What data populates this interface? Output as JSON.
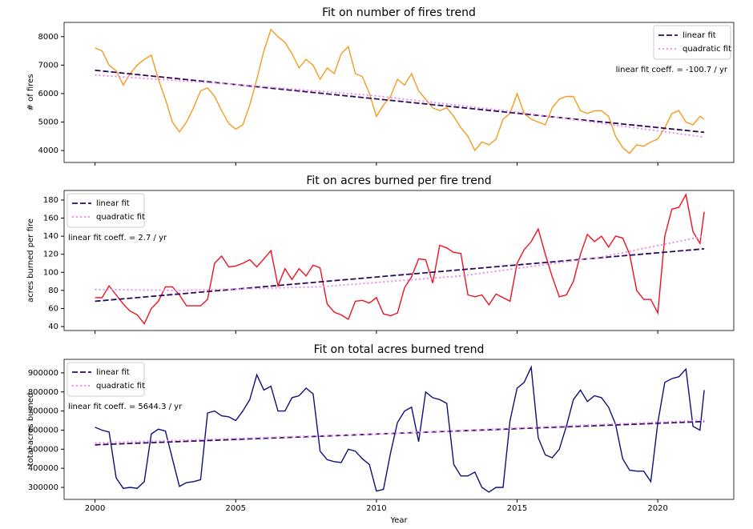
{
  "chart_data": [
    {
      "type": "line",
      "title": "Fit on number of fires trend",
      "ylabel": "# of fires",
      "annotation": "linear fit coeff. = -100.7 / yr",
      "legend": "upper right",
      "xlim": [
        1998.9,
        2022.7
      ],
      "xticks": [
        2000,
        2005,
        2010,
        2015,
        2020
      ],
      "ylim": [
        3580,
        8500
      ],
      "yticks": [
        4000,
        5000,
        6000,
        7000,
        8000
      ],
      "series": [
        {
          "color": "#f39c1f",
          "linestyle": "solid",
          "x": [
            2000,
            2000.25,
            2000.5,
            2000.75,
            2001,
            2001.25,
            2001.5,
            2001.75,
            2002,
            2002.25,
            2002.5,
            2002.75,
            2003,
            2003.25,
            2003.5,
            2003.75,
            2004,
            2004.25,
            2004.5,
            2004.75,
            2005,
            2005.25,
            2005.5,
            2005.75,
            2006,
            2006.25,
            2006.5,
            2006.75,
            2007,
            2007.25,
            2007.5,
            2007.75,
            2008,
            2008.25,
            2008.5,
            2008.75,
            2009,
            2009.25,
            2009.5,
            2009.75,
            2010,
            2010.25,
            2010.5,
            2010.75,
            2011,
            2011.25,
            2011.5,
            2011.75,
            2012,
            2012.25,
            2012.5,
            2012.75,
            2013,
            2013.25,
            2013.5,
            2013.75,
            2014,
            2014.25,
            2014.5,
            2014.75,
            2015,
            2015.25,
            2015.5,
            2015.75,
            2016,
            2016.25,
            2016.5,
            2016.75,
            2017,
            2017.25,
            2017.5,
            2017.75,
            2018,
            2018.25,
            2018.5,
            2018.75,
            2019,
            2019.25,
            2019.5,
            2019.75,
            2020,
            2020.25,
            2020.5,
            2020.75,
            2021,
            2021.25,
            2021.5,
            2021.65
          ],
          "values": [
            7600,
            7500,
            7000,
            6800,
            6300,
            6700,
            7000,
            7200,
            7350,
            6500,
            5800,
            5000,
            4650,
            5000,
            5500,
            6100,
            6200,
            5900,
            5400,
            4950,
            4750,
            4900,
            5600,
            6500,
            7500,
            8250,
            8000,
            7800,
            7400,
            6900,
            7200,
            7000,
            6500,
            6900,
            6700,
            7400,
            7650,
            6700,
            6600,
            6000,
            5200,
            5600,
            5900,
            6500,
            6300,
            6700,
            6100,
            5800,
            5500,
            5400,
            5500,
            5200,
            4800,
            4500,
            4000,
            4300,
            4200,
            4400,
            5100,
            5300,
            6000,
            5300,
            5100,
            5000,
            4900,
            5500,
            5800,
            5900,
            5900,
            5400,
            5300,
            5400,
            5400,
            5200,
            4500,
            4100,
            3900,
            4200,
            4150,
            4300,
            4400,
            4800,
            5300,
            5400,
            5000,
            4900,
            5200,
            5100
          ]
        },
        {
          "name": "linear fit",
          "color": "#2d0a5e",
          "linestyle": "dashed",
          "x": [
            2000,
            2021.65
          ],
          "values": [
            6820,
            4640
          ]
        },
        {
          "name": "quadratic fit",
          "color": "#ee82ee",
          "linestyle": "dotted",
          "x": [
            2000,
            2005,
            2010,
            2015,
            2021.65
          ],
          "values": [
            6650,
            6320,
            5920,
            5350,
            4470
          ]
        }
      ]
    },
    {
      "type": "line",
      "title": "Fit on acres burned per fire trend",
      "ylabel": "acres burned per fire",
      "annotation": "linear fit coeff. = 2.7 / yr",
      "legend": "upper left",
      "xlim": [
        1998.9,
        2022.7
      ],
      "xticks": [
        2000,
        2005,
        2010,
        2015,
        2020
      ],
      "ylim": [
        35.6,
        190.6
      ],
      "yticks": [
        40,
        60,
        80,
        100,
        120,
        140,
        160,
        180
      ],
      "series": [
        {
          "color": "#ee1122",
          "linestyle": "solid",
          "x": [
            2000,
            2000.25,
            2000.5,
            2000.75,
            2001,
            2001.25,
            2001.5,
            2001.75,
            2002,
            2002.25,
            2002.5,
            2002.75,
            2003,
            2003.25,
            2003.5,
            2003.75,
            2004,
            2004.25,
            2004.5,
            2004.75,
            2005,
            2005.25,
            2005.5,
            2005.75,
            2006,
            2006.25,
            2006.5,
            2006.75,
            2007,
            2007.25,
            2007.5,
            2007.75,
            2008,
            2008.25,
            2008.5,
            2008.75,
            2009,
            2009.25,
            2009.5,
            2009.75,
            2010,
            2010.25,
            2010.5,
            2010.75,
            2011,
            2011.25,
            2011.5,
            2011.75,
            2012,
            2012.25,
            2012.5,
            2012.75,
            2013,
            2013.25,
            2013.5,
            2013.75,
            2014,
            2014.25,
            2014.5,
            2014.75,
            2015,
            2015.25,
            2015.5,
            2015.75,
            2016,
            2016.25,
            2016.5,
            2016.75,
            2017,
            2017.25,
            2017.5,
            2017.75,
            2018,
            2018.25,
            2018.5,
            2018.75,
            2019,
            2019.25,
            2019.5,
            2019.75,
            2020,
            2020.25,
            2020.5,
            2020.75,
            2021,
            2021.25,
            2021.5,
            2021.65
          ],
          "values": [
            72,
            72,
            85,
            75,
            65,
            57,
            53,
            43,
            60,
            68,
            84,
            84,
            75,
            63,
            63,
            63,
            70,
            110,
            118,
            106,
            107,
            110,
            114,
            106,
            115,
            124,
            85,
            104,
            92,
            104,
            96,
            108,
            105,
            65,
            56,
            53,
            48,
            68,
            69,
            66,
            72,
            54,
            52,
            55,
            83,
            95,
            115,
            114,
            88,
            130,
            127,
            122,
            121,
            75,
            73,
            75,
            64,
            76,
            72,
            68,
            110,
            125,
            134,
            148,
            120,
            95,
            73,
            75,
            90,
            120,
            142,
            134,
            140,
            128,
            140,
            138,
            120,
            80,
            70,
            70,
            55,
            140,
            170,
            172,
            186,
            145,
            132,
            167
          ]
        },
        {
          "name": "linear fit",
          "color": "#2d0a5e",
          "linestyle": "dashed",
          "x": [
            2000,
            2021.65
          ],
          "values": [
            68,
            126
          ]
        },
        {
          "name": "quadratic fit",
          "color": "#ee82ee",
          "linestyle": "dotted",
          "x": [
            2000,
            2003,
            2008,
            2013,
            2018,
            2021.65
          ],
          "values": [
            81,
            80,
            84,
            96,
            117,
            140
          ]
        }
      ]
    },
    {
      "type": "line",
      "title": "Fit on total acres burned trend",
      "ylabel": "total acres burned",
      "xlabel": "Year",
      "annotation": "linear fit coeff. = 5644.3 / yr",
      "legend": "upper left",
      "xlim": [
        1998.9,
        2022.7
      ],
      "xticks": [
        2000,
        2005,
        2010,
        2015,
        2020
      ],
      "ylim": [
        237000,
        971000
      ],
      "yticks": [
        300000,
        400000,
        500000,
        600000,
        700000,
        800000,
        900000
      ],
      "series": [
        {
          "color": "#10107a",
          "linestyle": "solid",
          "x": [
            2000,
            2000.25,
            2000.5,
            2000.75,
            2001,
            2001.25,
            2001.5,
            2001.75,
            2002,
            2002.25,
            2002.5,
            2002.75,
            2003,
            2003.25,
            2003.5,
            2003.75,
            2004,
            2004.25,
            2004.5,
            2004.75,
            2005,
            2005.25,
            2005.5,
            2005.75,
            2006,
            2006.25,
            2006.5,
            2006.75,
            2007,
            2007.25,
            2007.5,
            2007.75,
            2008,
            2008.25,
            2008.5,
            2008.75,
            2009,
            2009.25,
            2009.5,
            2009.75,
            2010,
            2010.25,
            2010.5,
            2010.75,
            2011,
            2011.25,
            2011.5,
            2011.75,
            2012,
            2012.25,
            2012.5,
            2012.75,
            2013,
            2013.25,
            2013.5,
            2013.75,
            2014,
            2014.25,
            2014.5,
            2014.75,
            2015,
            2015.25,
            2015.5,
            2015.75,
            2016,
            2016.25,
            2016.5,
            2016.75,
            2017,
            2017.25,
            2017.5,
            2017.75,
            2018,
            2018.25,
            2018.5,
            2018.75,
            2019,
            2019.25,
            2019.5,
            2019.75,
            2020,
            2020.25,
            2020.5,
            2020.75,
            2021,
            2021.25,
            2021.5,
            2021.65
          ],
          "values": [
            615000,
            600000,
            590000,
            350000,
            295000,
            300000,
            295000,
            330000,
            580000,
            605000,
            595000,
            450000,
            305000,
            325000,
            330000,
            340000,
            690000,
            700000,
            675000,
            670000,
            650000,
            700000,
            760000,
            890000,
            810000,
            830000,
            700000,
            700000,
            770000,
            780000,
            820000,
            790000,
            490000,
            445000,
            435000,
            430000,
            500000,
            490000,
            450000,
            420000,
            280000,
            290000,
            480000,
            640000,
            700000,
            720000,
            540000,
            800000,
            770000,
            760000,
            740000,
            420000,
            360000,
            360000,
            380000,
            300000,
            275000,
            300000,
            300000,
            650000,
            820000,
            850000,
            930000,
            560000,
            470000,
            455000,
            500000,
            620000,
            760000,
            810000,
            750000,
            780000,
            770000,
            720000,
            630000,
            450000,
            390000,
            385000,
            385000,
            330000,
            640000,
            850000,
            870000,
            880000,
            920000,
            620000,
            600000,
            810000
          ]
        },
        {
          "name": "linear fit",
          "color": "#2d0a5e",
          "linestyle": "dashed",
          "x": [
            2000,
            2021.65
          ],
          "values": [
            523000,
            645000
          ]
        },
        {
          "name": "quadratic fit",
          "color": "#ee82ee",
          "linestyle": "dotted",
          "x": [
            2000,
            2010,
            2021.65
          ],
          "values": [
            533000,
            580000,
            652000
          ]
        }
      ]
    }
  ]
}
